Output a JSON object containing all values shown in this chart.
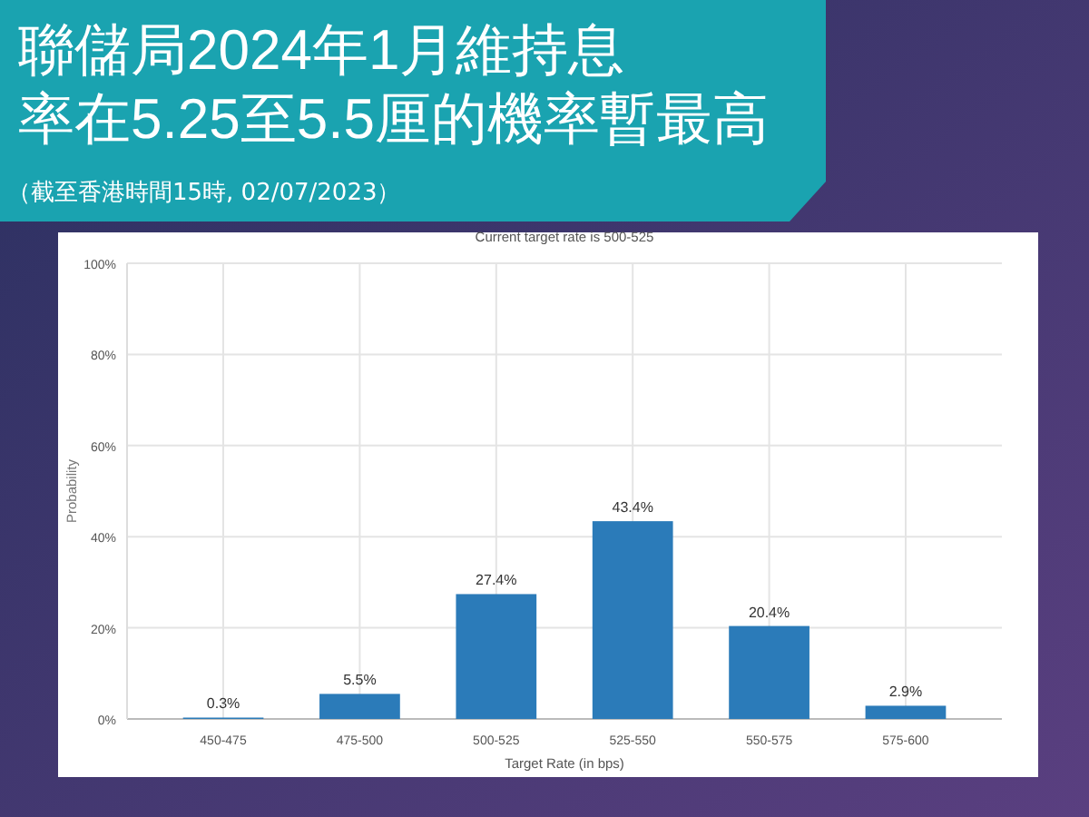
{
  "chart_data": {
    "type": "bar",
    "title": "聯儲局2024年1月維持息率在5.25至5.5厘的機率暫最高",
    "subtitle": "（截至香港時間15時, 02/07/2023）",
    "annotations": [
      "Current target rate is 500-525"
    ],
    "xlabel": "Target Rate (in bps)",
    "ylabel": "Probability",
    "categories": [
      "450-475",
      "475-500",
      "500-525",
      "525-550",
      "550-575",
      "575-600"
    ],
    "values": [
      0.3,
      5.5,
      27.4,
      43.4,
      20.4,
      2.9
    ],
    "value_labels": [
      "0.3%",
      "5.5%",
      "27.4%",
      "43.4%",
      "20.4%",
      "2.9%"
    ],
    "color": "#2b7bb9",
    "ylim": [
      0,
      100
    ],
    "yticks": [
      {
        "value": 0,
        "label": "0%"
      },
      {
        "value": 20,
        "label": "20%"
      },
      {
        "value": 40,
        "label": "40%"
      },
      {
        "value": 60,
        "label": "60%"
      },
      {
        "value": 80,
        "label": "80%"
      },
      {
        "value": 100,
        "label": "100%"
      }
    ],
    "grid": true
  }
}
